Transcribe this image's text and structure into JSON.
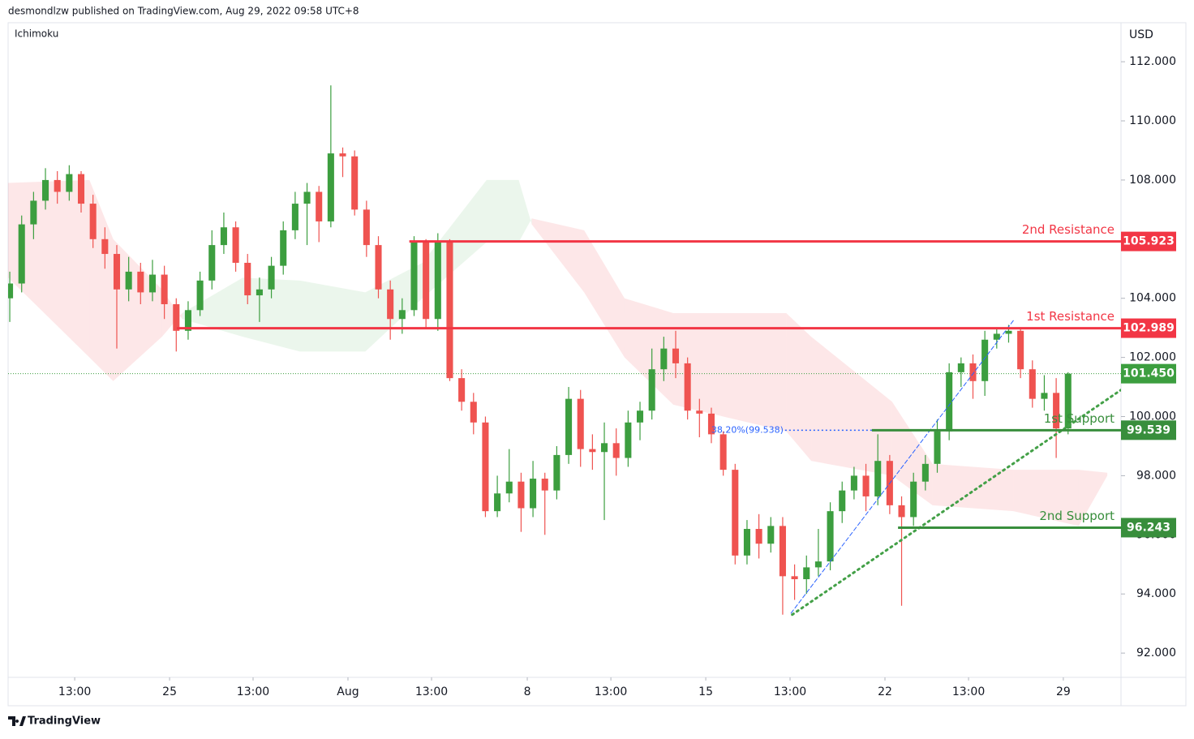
{
  "header": "desmondlzw published on TradingView.com, Aug 29, 2022 09:58 UTC+8",
  "footer": "TradingView",
  "chart_data": {
    "type": "candlestick",
    "indicator": "Ichimoku",
    "currency": "USD",
    "up_color": "#3c9e3f",
    "down_color": "#ef5350",
    "open": [
      104.0,
      104.5,
      106.5,
      107.3,
      108.0,
      107.6,
      108.2,
      107.2,
      106.0,
      105.5,
      104.3,
      104.9,
      104.2,
      104.8,
      103.8,
      102.9,
      103.6,
      104.6,
      105.8,
      106.4,
      105.2,
      104.1,
      104.3,
      105.1,
      106.3,
      107.2,
      107.6,
      106.6,
      108.9,
      108.8,
      107.0,
      105.8,
      104.3,
      103.3,
      103.6,
      105.9,
      103.3,
      105.9,
      101.3,
      100.5,
      99.8,
      96.8,
      97.4,
      97.8,
      96.9,
      97.9,
      97.5,
      98.7,
      100.6,
      98.9,
      98.8,
      99.1,
      98.6,
      99.8,
      100.2,
      101.6,
      102.3,
      101.8,
      100.2,
      100.1,
      99.4,
      98.2,
      95.3,
      96.2,
      95.7,
      96.3,
      94.6,
      94.5,
      94.9,
      95.1,
      96.8,
      97.5,
      98.0,
      97.3,
      98.5,
      97.0,
      96.6,
      97.8,
      98.4,
      99.5,
      101.5,
      101.8,
      101.2,
      102.6,
      102.8,
      102.9,
      101.6,
      100.6,
      100.8,
      99.6
    ],
    "high": [
      104.9,
      106.8,
      107.6,
      108.4,
      108.3,
      108.5,
      108.3,
      107.5,
      106.4,
      105.8,
      105.4,
      105.2,
      105.3,
      105.1,
      104.0,
      103.9,
      104.9,
      106.3,
      106.9,
      106.6,
      105.5,
      104.7,
      105.4,
      106.6,
      107.6,
      107.9,
      107.8,
      111.2,
      109.1,
      109.0,
      107.3,
      106.1,
      104.6,
      104.0,
      106.1,
      106.0,
      106.2,
      106.0,
      101.6,
      100.8,
      100.0,
      98.0,
      98.9,
      98.1,
      98.5,
      98.1,
      99.0,
      101.0,
      100.9,
      99.4,
      99.8,
      99.6,
      100.2,
      100.5,
      102.3,
      102.7,
      102.9,
      102.0,
      100.6,
      100.3,
      99.5,
      98.4,
      96.5,
      96.7,
      96.6,
      96.6,
      95.0,
      95.3,
      96.2,
      97.1,
      97.8,
      98.3,
      98.4,
      99.4,
      98.7,
      97.3,
      98.1,
      98.7,
      99.9,
      101.8,
      102.0,
      102.1,
      102.9,
      103.0,
      103.1,
      103.0,
      101.9,
      101.4,
      101.3,
      101.5
    ],
    "low": [
      103.2,
      104.2,
      106.0,
      107.0,
      107.2,
      107.3,
      106.9,
      105.7,
      105.0,
      102.3,
      103.9,
      103.8,
      103.9,
      103.3,
      102.2,
      102.6,
      103.4,
      104.3,
      105.5,
      104.9,
      103.8,
      103.2,
      104.0,
      104.8,
      106.0,
      105.8,
      105.9,
      106.4,
      108.1,
      106.8,
      105.4,
      104.0,
      102.6,
      102.8,
      103.4,
      103.0,
      102.9,
      101.2,
      100.2,
      99.4,
      96.6,
      96.6,
      97.1,
      96.1,
      96.6,
      96.0,
      97.2,
      98.4,
      98.3,
      98.2,
      96.5,
      98.0,
      98.3,
      99.2,
      99.9,
      101.2,
      101.3,
      99.9,
      99.3,
      99.1,
      98.0,
      95.0,
      95.0,
      95.2,
      95.4,
      93.3,
      93.8,
      94.0,
      94.6,
      94.8,
      96.4,
      97.2,
      96.8,
      97.0,
      96.7,
      93.6,
      96.3,
      97.5,
      98.1,
      99.2,
      101.0,
      100.6,
      100.7,
      102.3,
      102.5,
      101.3,
      100.3,
      100.2,
      98.6,
      99.4
    ],
    "close": [
      104.5,
      106.5,
      107.3,
      108.0,
      107.6,
      108.2,
      107.2,
      106.0,
      105.5,
      104.3,
      104.9,
      104.2,
      104.8,
      103.8,
      102.9,
      103.6,
      104.6,
      105.8,
      106.4,
      105.2,
      104.1,
      104.3,
      105.1,
      106.3,
      107.2,
      107.6,
      106.6,
      108.9,
      108.8,
      107.0,
      105.8,
      104.3,
      103.3,
      103.6,
      105.9,
      103.3,
      105.9,
      101.3,
      100.5,
      99.8,
      96.8,
      97.4,
      97.8,
      96.9,
      97.9,
      97.5,
      98.7,
      100.6,
      98.9,
      98.8,
      99.1,
      98.6,
      99.8,
      100.2,
      101.6,
      102.3,
      101.8,
      100.2,
      100.1,
      99.4,
      98.2,
      95.3,
      96.2,
      95.7,
      96.3,
      94.6,
      94.5,
      94.9,
      95.1,
      96.8,
      97.5,
      98.0,
      97.3,
      98.5,
      97.0,
      96.6,
      97.8,
      98.4,
      99.5,
      101.5,
      101.8,
      101.2,
      102.6,
      102.8,
      102.9,
      101.6,
      100.6,
      100.8,
      99.6,
      101.45
    ],
    "cloud": {
      "x": [
        -0.14,
        6.7,
        8.7,
        12.8,
        14.5,
        19.6,
        24.4,
        29.9,
        34.7,
        40.1,
        42.8,
        43.9,
        48.3,
        51.7,
        55.8,
        65.3,
        67.4,
        74.2,
        77.6,
        84.4,
        89.9,
        92.3
      ],
      "span_a": [
        104.7,
        102.0,
        101.2,
        102.7,
        103.5,
        104.7,
        104.6,
        104.2,
        105.2,
        108.0,
        108.0,
        106.5,
        104.2,
        102.0,
        100.4,
        99.5,
        98.5,
        98.0,
        97.0,
        96.8,
        96.3,
        98.0
      ],
      "span_b": [
        107.9,
        108.0,
        106.0,
        104.3,
        103.3,
        102.7,
        102.2,
        102.2,
        104.0,
        105.9,
        105.9,
        106.7,
        106.3,
        104.0,
        103.5,
        103.5,
        102.7,
        100.5,
        98.4,
        98.2,
        98.2,
        98.1
      ],
      "bull_color": "rgba(76,175,80,0.11)",
      "bear_color": "rgba(242,54,69,0.12)"
    },
    "levels": [
      {
        "name": "2nd Resistance",
        "value": 105.923,
        "start": 33.6,
        "color": "#f23645"
      },
      {
        "name": "1st Resistance",
        "value": 102.989,
        "start": 14.05,
        "color": "#f23645"
      },
      {
        "name": "1st Support",
        "value": 99.539,
        "start": 72.5,
        "color": "#388e3c"
      },
      {
        "name": "2nd Support",
        "value": 96.243,
        "start": 74.7,
        "color": "#388e3c"
      }
    ],
    "fib": {
      "label": "38.20%(99.538)",
      "value": 99.538,
      "x": [
        65.2,
        72.5
      ],
      "color": "#2962ff"
    },
    "trendlines": [
      {
        "x": [
          65.8,
          93.45
        ],
        "y": [
          93.3,
          100.9
        ],
        "color": "#43a047",
        "style": "dotted"
      },
      {
        "x": [
          65.7,
          84.5
        ],
        "y": [
          93.35,
          103.3
        ],
        "color": "#2962ff",
        "style": "dashed"
      }
    ],
    "last_price": {
      "value": 101.45,
      "label": "101.450"
    },
    "xlim": [
      -0.14,
      93.45
    ],
    "ylim": [
      91.18,
      113.32
    ],
    "yticks": [
      {
        "value": 92,
        "label": "92.000"
      },
      {
        "value": 94,
        "label": "94.000"
      },
      {
        "value": 96,
        "label": "96.000"
      },
      {
        "value": 98,
        "label": "98.000"
      },
      {
        "value": 100,
        "label": "100.000"
      },
      {
        "value": 102,
        "label": "102.000"
      },
      {
        "value": 104,
        "label": "104.000"
      },
      {
        "value": 106,
        "label": "106.000"
      },
      {
        "value": 108,
        "label": "108.000"
      },
      {
        "value": 110,
        "label": "110.000"
      },
      {
        "value": 112,
        "label": "112.000"
      }
    ],
    "xticks": [
      {
        "value": 5.46,
        "label": "13:00"
      },
      {
        "value": 13.44,
        "label": "25"
      },
      {
        "value": 20.46,
        "label": "13:00"
      },
      {
        "value": 28.44,
        "label": "Aug"
      },
      {
        "value": 35.47,
        "label": "13:00"
      },
      {
        "value": 43.52,
        "label": "8"
      },
      {
        "value": 50.55,
        "label": "13:00"
      },
      {
        "value": 58.53,
        "label": "15"
      },
      {
        "value": 65.62,
        "label": "13:00"
      },
      {
        "value": 73.6,
        "label": "22"
      },
      {
        "value": 80.63,
        "label": "13:00"
      },
      {
        "value": 88.6,
        "label": "29"
      }
    ]
  }
}
